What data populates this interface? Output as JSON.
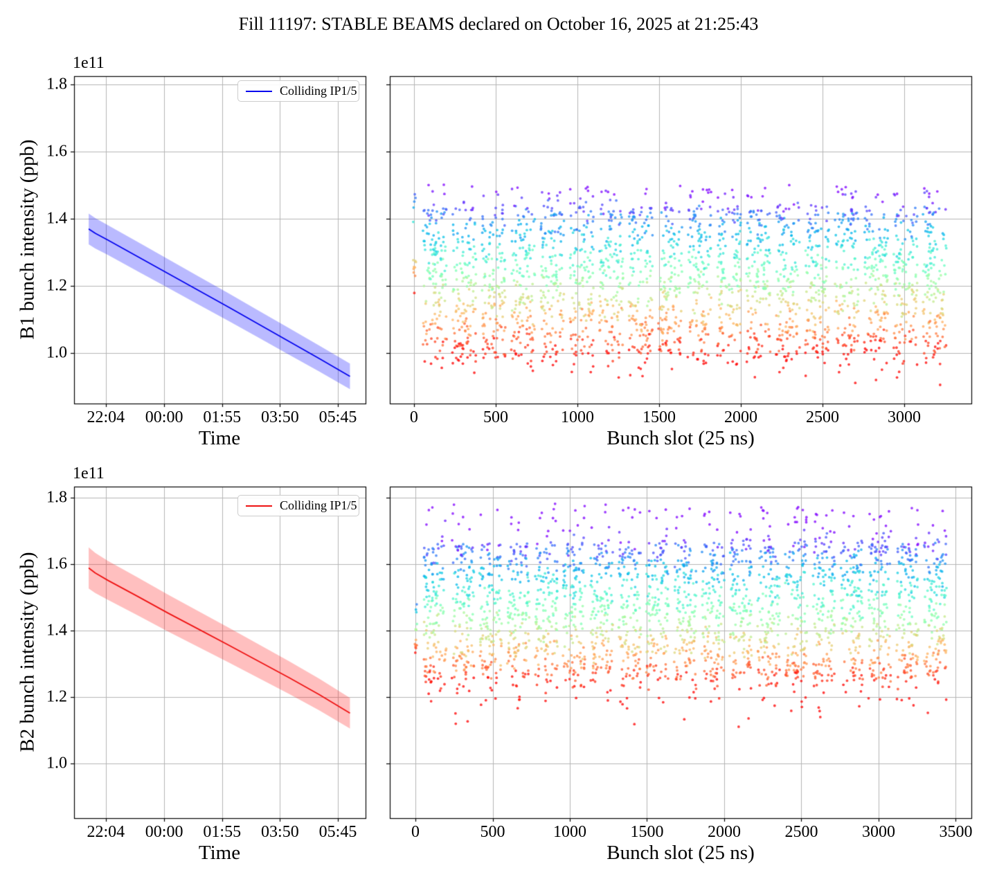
{
  "title": "Fill 11197: STABLE BEAMS declared on October 16, 2025 at 21:25:43",
  "colors": {
    "b1_line": "#0000ee",
    "b1_band": "rgba(0,0,255,0.27)",
    "b2_line": "#ee1111",
    "b2_band": "rgba(255,17,17,0.27)",
    "grid": "#b5b5b5",
    "spine": "#000000",
    "legend_border": "#cccccc"
  },
  "chart_data": [
    {
      "id": "b1_intensity_vs_time",
      "type": "line",
      "xlabel": "Time",
      "ylabel": "B1 bunch intensity (ppb)",
      "offset_text": "1e11",
      "legend": {
        "label": "Colliding IP1/5",
        "color": "#0000ee"
      },
      "xticks": [
        "22:04",
        "00:00",
        "01:55",
        "03:50",
        "05:45"
      ],
      "xtick_minutes": [
        36,
        152,
        267,
        382,
        497
      ],
      "xlim_minutes": [
        -27,
        552
      ],
      "ytick_labels": [
        "1.0",
        "1.2",
        "1.4",
        "1.6",
        "1.8"
      ],
      "yticks": [
        1.0,
        1.2,
        1.4,
        1.6,
        1.8
      ],
      "ylim": [
        0.85,
        1.825
      ],
      "x_minutes": [
        2,
        15,
        40,
        100,
        160,
        220,
        280,
        340,
        400,
        460,
        521
      ],
      "y": [
        1.37,
        1.357,
        1.337,
        1.287,
        1.237,
        1.187,
        1.137,
        1.086,
        1.035,
        0.984,
        0.931
      ],
      "band_halfwidth": [
        0.046,
        0.038
      ],
      "grid": true
    },
    {
      "id": "b1_intensity_vs_bunch_slot",
      "type": "scatter",
      "xlabel": "Bunch slot (25 ns)",
      "xticks": [
        0,
        500,
        1000,
        1500,
        2000,
        2500,
        3000
      ],
      "xlim": [
        -148,
        3411
      ],
      "ylim": [
        0.85,
        1.825
      ],
      "yticks": [
        1.0,
        1.2,
        1.4,
        1.6,
        1.8
      ],
      "trains": {
        "count": 18,
        "first_slot": 55,
        "period": 180,
        "length": 145,
        "points_per_train": 140
      },
      "y_core": [
        1.005,
        1.44
      ],
      "top_tail_max": 1.5,
      "bottom_tail_min": 0.905,
      "color_norm": [
        0.99,
        1.48
      ],
      "leading_bunches": {
        "x0": -5,
        "x1": 12,
        "n": 14,
        "y0": 1.17,
        "y1": 1.48
      },
      "colormap": "rainbow_reversed_by_intensity",
      "marker_radius": 1.9,
      "marker_alpha": 0.75,
      "seed": 7,
      "grid": true
    },
    {
      "id": "b2_intensity_vs_time",
      "type": "line",
      "xlabel": "Time",
      "ylabel": "B2 bunch intensity (ppb)",
      "offset_text": "1e11",
      "legend": {
        "label": "Colliding IP1/5",
        "color": "#ee1111"
      },
      "xticks": [
        "22:04",
        "00:00",
        "01:55",
        "03:50",
        "05:45"
      ],
      "xtick_minutes": [
        36,
        152,
        267,
        382,
        497
      ],
      "xlim_minutes": [
        -27,
        552
      ],
      "ytick_labels": [
        "1.0",
        "1.2",
        "1.4",
        "1.6",
        "1.8"
      ],
      "yticks": [
        1.0,
        1.2,
        1.4,
        1.6,
        1.8
      ],
      "ylim": [
        0.835,
        1.833
      ],
      "x_minutes": [
        2,
        15,
        40,
        100,
        160,
        220,
        280,
        340,
        400,
        460,
        521
      ],
      "y": [
        1.588,
        1.573,
        1.551,
        1.502,
        1.452,
        1.404,
        1.356,
        1.307,
        1.258,
        1.207,
        1.151
      ],
      "band_halfwidth": [
        0.062,
        0.046
      ],
      "grid": true
    },
    {
      "id": "b2_intensity_vs_bunch_slot",
      "type": "scatter",
      "xlabel": "Bunch slot (25 ns)",
      "xticks": [
        0,
        500,
        1000,
        1500,
        2000,
        2500,
        3000,
        3500
      ],
      "xlim": [
        -166,
        3601
      ],
      "ylim": [
        0.835,
        1.833
      ],
      "yticks": [
        1.0,
        1.2,
        1.4,
        1.6,
        1.8
      ],
      "trains": {
        "count": 19,
        "first_slot": 55,
        "period": 180,
        "length": 145,
        "points_per_train": 140
      },
      "y_core": [
        1.255,
        1.67
      ],
      "top_tail_max": 1.78,
      "bottom_tail_min": 1.1,
      "color_norm": [
        1.22,
        1.7
      ],
      "leading_bunches": {
        "x0": -5,
        "x1": 12,
        "n": 14,
        "y0": 1.33,
        "y1": 1.49
      },
      "colormap": "rainbow_reversed_by_intensity",
      "marker_radius": 1.9,
      "marker_alpha": 0.75,
      "seed": 11,
      "grid": true
    }
  ]
}
